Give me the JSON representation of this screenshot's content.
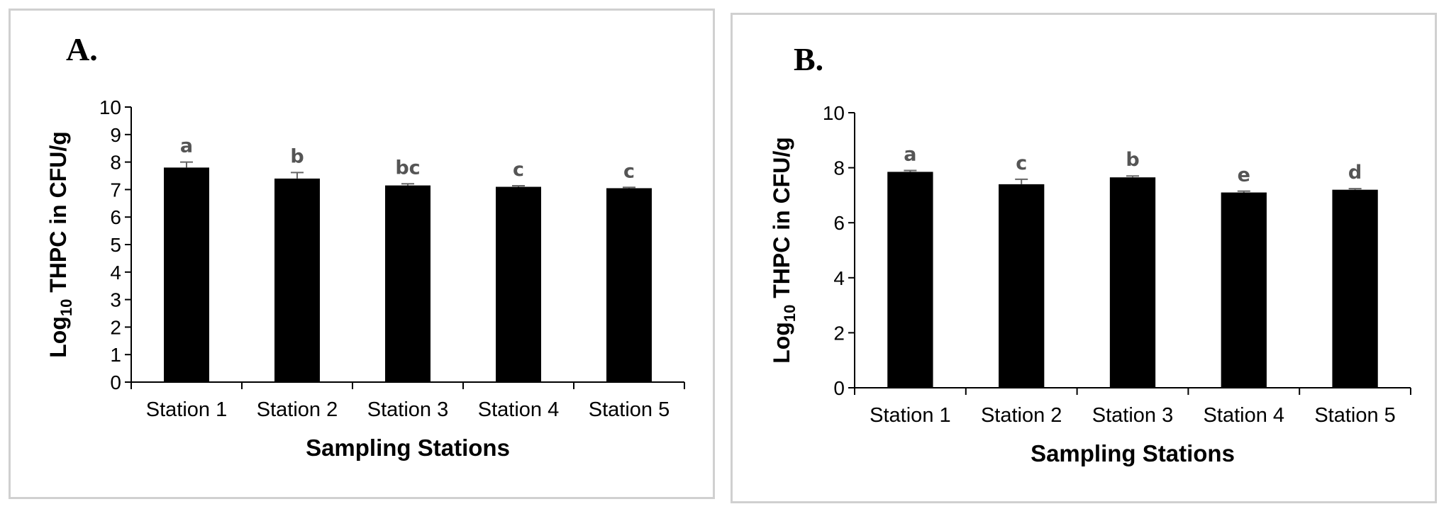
{
  "chart_data": [
    {
      "type": "bar",
      "panel_label": "A.",
      "categories": [
        "Station 1",
        "Station 2",
        "Station 3",
        "Station 4",
        "Station 5"
      ],
      "values": [
        7.8,
        7.4,
        7.15,
        7.1,
        7.05
      ],
      "errors": [
        0.2,
        0.22,
        0.06,
        0.04,
        0.03
      ],
      "significance_letters": [
        "a",
        "b",
        "bc",
        "c",
        "c"
      ],
      "xlabel": "Sampling Stations",
      "ylabel_main": "Log",
      "ylabel_sub": "10",
      "ylabel_rest": " THPC in CFU/g",
      "ylim": [
        0,
        10
      ],
      "yticks": [
        0,
        1,
        2,
        3,
        4,
        5,
        6,
        7,
        8,
        9,
        10
      ],
      "bar_color": "#000000",
      "grid": false,
      "legend": "none"
    },
    {
      "type": "bar",
      "panel_label": "B.",
      "categories": [
        "Station 1",
        "Station 2",
        "Station 3",
        "Station 4",
        "Station 5"
      ],
      "values": [
        7.85,
        7.4,
        7.65,
        7.1,
        7.2
      ],
      "errors": [
        0.05,
        0.18,
        0.05,
        0.05,
        0.04
      ],
      "significance_letters": [
        "a",
        "c",
        "b",
        "e",
        "d"
      ],
      "xlabel": "Sampling Stations",
      "ylabel_main": "Log",
      "ylabel_sub": "10",
      "ylabel_rest": " THPC in CFU/g",
      "ylim": [
        0,
        10
      ],
      "yticks": [
        0,
        2,
        4,
        6,
        8,
        10
      ],
      "bar_color": "#000000",
      "grid": false,
      "legend": "none"
    }
  ]
}
